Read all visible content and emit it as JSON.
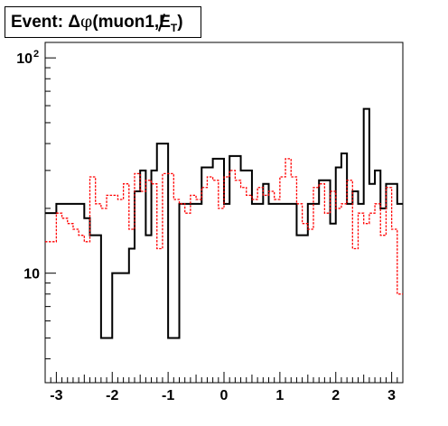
{
  "chart_data": {
    "type": "step-histogram",
    "title": "Event: Δφ(muon1,E̸T)",
    "title_parts": {
      "prefix": "Event: ",
      "delta": "Δ",
      "phi": "φ",
      "open": "(muon1,",
      "met": "E",
      "met_sub": "T",
      "close": ")"
    },
    "xlabel": "",
    "ylabel": "",
    "xlim": [
      -3.2,
      3.2
    ],
    "ylim": [
      3.1,
      118
    ],
    "y_log": true,
    "grid": false,
    "legend": "none",
    "x_ticks": [
      {
        "value": -3,
        "label": "-3"
      },
      {
        "value": -2,
        "label": "-2"
      },
      {
        "value": -1,
        "label": "-1"
      },
      {
        "value": 0,
        "label": "0"
      },
      {
        "value": 1,
        "label": "1"
      },
      {
        "value": 2,
        "label": "2"
      },
      {
        "value": 3,
        "label": "3"
      }
    ],
    "y_ticks": [
      {
        "value": 10,
        "label": "10",
        "sup": ""
      },
      {
        "value": 100,
        "label": "10",
        "sup": "2"
      }
    ],
    "bin_edges_range": [
      -3.2,
      3.2
    ],
    "n_bins": 64,
    "series": [
      {
        "color": "#000000",
        "style": "solid",
        "values": [
          19,
          19,
          21,
          21,
          21,
          21,
          21,
          18,
          15,
          15,
          5,
          5,
          10,
          10,
          10,
          13,
          24,
          30,
          15,
          30,
          40,
          40,
          5,
          5,
          21,
          21,
          21,
          21,
          31,
          31,
          34,
          34,
          21,
          35,
          35,
          30,
          30,
          21,
          21,
          26,
          21,
          21,
          21,
          21,
          21,
          15,
          15,
          21,
          21,
          27,
          27,
          17,
          31,
          36,
          21,
          24,
          21,
          58,
          26,
          30,
          20,
          26,
          26,
          21
        ]
      },
      {
        "color": "#ff0000",
        "style": "dashed",
        "values": [
          14,
          14,
          19,
          18,
          17,
          16,
          15,
          14,
          28,
          21,
          20,
          23,
          23,
          22,
          26,
          16,
          29,
          24,
          27,
          26,
          13,
          29,
          29,
          22,
          21,
          19,
          23,
          22,
          25,
          28,
          27,
          20,
          28,
          30,
          27,
          25,
          23,
          22,
          25,
          23,
          24,
          22,
          28,
          34,
          28,
          21,
          17,
          16,
          25,
          26,
          19,
          24,
          20,
          21,
          27,
          13,
          19,
          17,
          19,
          21,
          15,
          25,
          16,
          8
        ]
      }
    ]
  }
}
